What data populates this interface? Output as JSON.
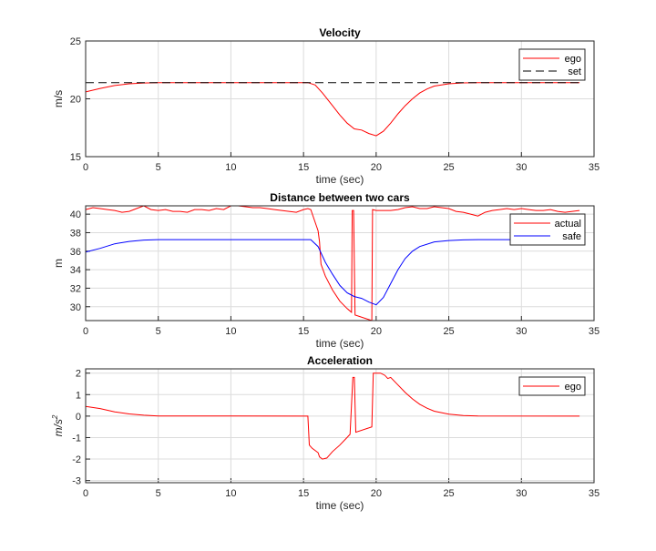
{
  "chart_data": [
    {
      "type": "line",
      "title": "Velocity",
      "xlabel": "time (sec)",
      "ylabel": "m/s",
      "xlim": [
        0,
        35
      ],
      "ylim": [
        15,
        25
      ],
      "xticks": [
        0,
        5,
        10,
        15,
        20,
        25,
        30,
        35
      ],
      "yticks": [
        15,
        20,
        25
      ],
      "grid": true,
      "legend_placement": "top-right",
      "series": [
        {
          "name": "ego",
          "color": "#ff0000",
          "dash": "solid",
          "points": [
            [
              0,
              20.6
            ],
            [
              1,
              20.9
            ],
            [
              2,
              21.15
            ],
            [
              3,
              21.3
            ],
            [
              4,
              21.37
            ],
            [
              5,
              21.4
            ],
            [
              15.3,
              21.4
            ],
            [
              15.8,
              21.2
            ],
            [
              16.3,
              20.5
            ],
            [
              17,
              19.4
            ],
            [
              17.5,
              18.6
            ],
            [
              18,
              17.9
            ],
            [
              18.5,
              17.4
            ],
            [
              19,
              17.3
            ],
            [
              19.5,
              17.0
            ],
            [
              20,
              16.8
            ],
            [
              20.5,
              17.2
            ],
            [
              21,
              17.9
            ],
            [
              21.5,
              18.7
            ],
            [
              22,
              19.4
            ],
            [
              22.5,
              20.0
            ],
            [
              23,
              20.5
            ],
            [
              23.5,
              20.85
            ],
            [
              24,
              21.1
            ],
            [
              25,
              21.3
            ],
            [
              26,
              21.38
            ],
            [
              27,
              21.4
            ],
            [
              34,
              21.4
            ]
          ]
        },
        {
          "name": "set",
          "color": "#000000",
          "dash": "dashed",
          "points": [
            [
              0,
              21.4
            ],
            [
              34,
              21.4
            ]
          ]
        }
      ]
    },
    {
      "type": "line",
      "title": "Distance between two cars",
      "xlabel": "time (sec)",
      "ylabel": "m",
      "xlim": [
        0,
        35
      ],
      "ylim": [
        28.5,
        40.9
      ],
      "xticks": [
        0,
        5,
        10,
        15,
        20,
        25,
        30,
        35
      ],
      "yticks": [
        30,
        32,
        34,
        36,
        38,
        40
      ],
      "grid": true,
      "legend_placement": "top-right",
      "series": [
        {
          "name": "actual",
          "color": "#ff0000",
          "dash": "solid",
          "points": [
            [
              0,
              40.5
            ],
            [
              0.5,
              40.7
            ],
            [
              1,
              40.6
            ],
            [
              1.5,
              40.5
            ],
            [
              2,
              40.4
            ],
            [
              2.5,
              40.2
            ],
            [
              3,
              40.3
            ],
            [
              3.5,
              40.6
            ],
            [
              4,
              40.9
            ],
            [
              4.5,
              40.5
            ],
            [
              5,
              40.4
            ],
            [
              5.5,
              40.5
            ],
            [
              6,
              40.3
            ],
            [
              6.5,
              40.3
            ],
            [
              7,
              40.2
            ],
            [
              7.5,
              40.5
            ],
            [
              8,
              40.5
            ],
            [
              8.5,
              40.4
            ],
            [
              9,
              40.6
            ],
            [
              9.5,
              40.5
            ],
            [
              10,
              40.9
            ],
            [
              10.5,
              40.9
            ],
            [
              11,
              40.8
            ],
            [
              11.5,
              40.7
            ],
            [
              12,
              40.7
            ],
            [
              12.5,
              40.6
            ],
            [
              13,
              40.5
            ],
            [
              13.5,
              40.4
            ],
            [
              14,
              40.3
            ],
            [
              14.5,
              40.2
            ],
            [
              15,
              40.5
            ],
            [
              15.3,
              40.6
            ],
            [
              15.5,
              40.5
            ],
            [
              16,
              38.2
            ],
            [
              16.1,
              37
            ],
            [
              16.2,
              34.6
            ],
            [
              16.5,
              33.3
            ],
            [
              17,
              31.8
            ],
            [
              17.5,
              30.6
            ],
            [
              18,
              29.8
            ],
            [
              18.3,
              29.4
            ],
            [
              18.35,
              40.4
            ],
            [
              18.45,
              40.4
            ],
            [
              18.55,
              29.1
            ],
            [
              19.7,
              28.5
            ],
            [
              19.75,
              40.5
            ],
            [
              20,
              40.4
            ],
            [
              20.5,
              40.4
            ],
            [
              21,
              40.4
            ],
            [
              21.5,
              40.5
            ],
            [
              22,
              40.7
            ],
            [
              22.5,
              40.8
            ],
            [
              23,
              40.6
            ],
            [
              23.5,
              40.6
            ],
            [
              24,
              40.8
            ],
            [
              24.5,
              40.7
            ],
            [
              25,
              40.6
            ],
            [
              25.5,
              40.3
            ],
            [
              26,
              40.2
            ],
            [
              26.5,
              40.0
            ],
            [
              27,
              39.8
            ],
            [
              27.5,
              40.2
            ],
            [
              28,
              40.4
            ],
            [
              28.5,
              40.5
            ],
            [
              29,
              40.6
            ],
            [
              29.5,
              40.5
            ],
            [
              30,
              40.6
            ],
            [
              30.5,
              40.5
            ],
            [
              31,
              40.4
            ],
            [
              31.5,
              40.4
            ],
            [
              32,
              40.5
            ],
            [
              32.5,
              40.3
            ],
            [
              33,
              40.2
            ],
            [
              33.5,
              40.3
            ],
            [
              34,
              40.4
            ]
          ]
        },
        {
          "name": "safe",
          "color": "#0000ff",
          "dash": "solid",
          "points": [
            [
              0,
              35.9
            ],
            [
              1,
              36.3
            ],
            [
              2,
              36.8
            ],
            [
              3,
              37.05
            ],
            [
              4,
              37.2
            ],
            [
              5,
              37.25
            ],
            [
              15.5,
              37.25
            ],
            [
              16,
              36.5
            ],
            [
              16.5,
              34.8
            ],
            [
              17,
              33.5
            ],
            [
              17.5,
              32.3
            ],
            [
              18,
              31.5
            ],
            [
              18.5,
              31.1
            ],
            [
              19,
              30.9
            ],
            [
              19.5,
              30.5
            ],
            [
              20,
              30.2
            ],
            [
              20.5,
              31.0
            ],
            [
              21,
              32.5
            ],
            [
              21.5,
              34
            ],
            [
              22,
              35.2
            ],
            [
              22.5,
              36
            ],
            [
              23,
              36.5
            ],
            [
              24,
              37
            ],
            [
              25,
              37.15
            ],
            [
              26,
              37.22
            ],
            [
              27,
              37.25
            ],
            [
              34,
              37.25
            ]
          ]
        }
      ]
    },
    {
      "type": "line",
      "title": "Acceleration",
      "xlabel": "time (sec)",
      "ylabel": "m/s",
      "ylabel_exponent": "2",
      "xlim": [
        0,
        35
      ],
      "ylim": [
        -3.1,
        2.2
      ],
      "xticks": [
        0,
        5,
        10,
        15,
        20,
        25,
        30,
        35
      ],
      "yticks": [
        -3,
        -2,
        -1,
        0,
        1,
        2
      ],
      "grid": true,
      "legend_placement": "top-right",
      "series": [
        {
          "name": "ego",
          "color": "#ff0000",
          "dash": "solid",
          "points": [
            [
              0,
              0.45
            ],
            [
              1,
              0.35
            ],
            [
              2,
              0.2
            ],
            [
              3,
              0.1
            ],
            [
              4,
              0.04
            ],
            [
              5,
              0.01
            ],
            [
              15.3,
              0
            ],
            [
              15.4,
              -1.35
            ],
            [
              15.6,
              -1.5
            ],
            [
              16,
              -1.7
            ],
            [
              16.1,
              -1.9
            ],
            [
              16.3,
              -2.0
            ],
            [
              16.6,
              -1.95
            ],
            [
              17,
              -1.65
            ],
            [
              17.5,
              -1.35
            ],
            [
              18.2,
              -0.85
            ],
            [
              18.4,
              1.8
            ],
            [
              18.5,
              1.8
            ],
            [
              18.6,
              -0.75
            ],
            [
              19.7,
              -0.5
            ],
            [
              19.8,
              2.0
            ],
            [
              20.3,
              2.0
            ],
            [
              20.6,
              1.9
            ],
            [
              20.8,
              1.75
            ],
            [
              21,
              1.8
            ],
            [
              21.5,
              1.45
            ],
            [
              22,
              1.1
            ],
            [
              22.5,
              0.8
            ],
            [
              23,
              0.55
            ],
            [
              23.5,
              0.37
            ],
            [
              24,
              0.23
            ],
            [
              25,
              0.09
            ],
            [
              26,
              0.03
            ],
            [
              27,
              0.01
            ],
            [
              34,
              0
            ]
          ]
        }
      ]
    }
  ]
}
